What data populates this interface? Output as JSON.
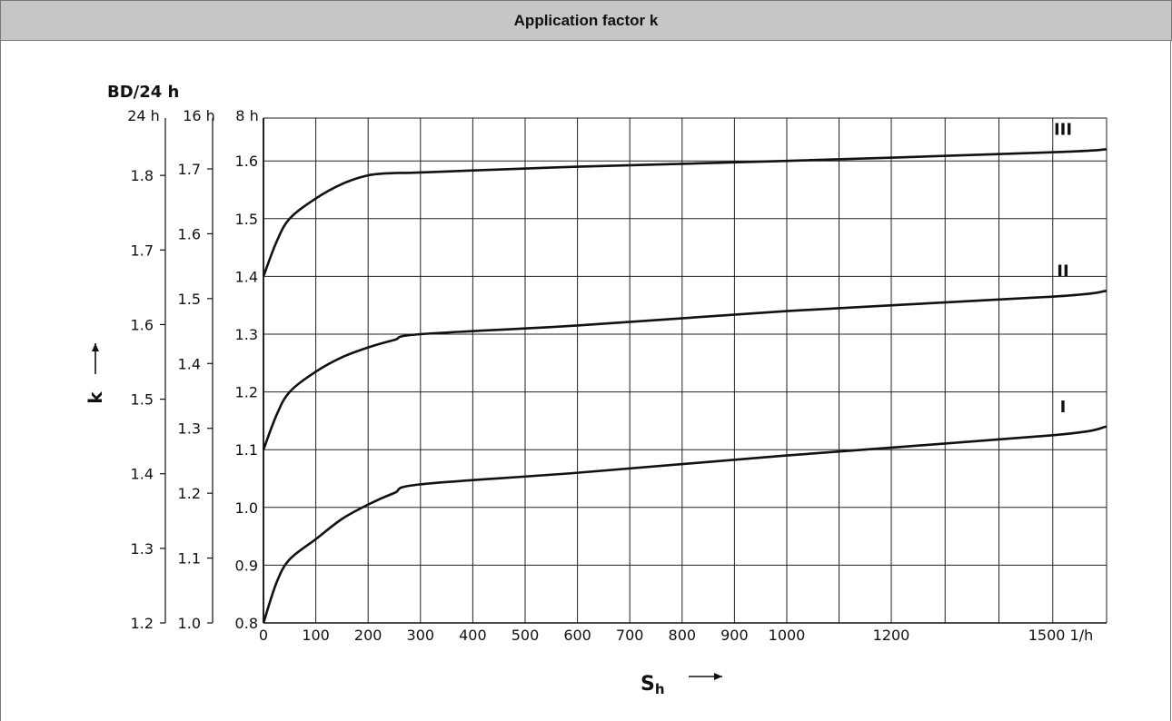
{
  "header": {
    "title": "Application factor k"
  },
  "chart_data": {
    "type": "line",
    "title": "BD/24 h",
    "xlabel": "Sh",
    "xlabel_main": "S",
    "xlabel_sub": "h",
    "ylabel": "k",
    "x_ticks": [
      {
        "value": 0,
        "label": "0"
      },
      {
        "value": 100,
        "label": "100"
      },
      {
        "value": 200,
        "label": "200"
      },
      {
        "value": 300,
        "label": "300"
      },
      {
        "value": 400,
        "label": "400"
      },
      {
        "value": 500,
        "label": "500"
      },
      {
        "value": 600,
        "label": "600"
      },
      {
        "value": 700,
        "label": "700"
      },
      {
        "value": 800,
        "label": "800"
      },
      {
        "value": 900,
        "label": "900"
      },
      {
        "value": 1000,
        "label": "1000"
      },
      {
        "value": 1200,
        "label": "1200"
      },
      {
        "value": 1500,
        "label": "1500 1/h"
      }
    ],
    "y_axes": [
      {
        "name": "8 h",
        "ylim": [
          0.8,
          1.65
        ],
        "ticks": [
          0.8,
          0.9,
          1.0,
          1.1,
          1.2,
          1.3,
          1.4,
          1.5,
          1.6
        ],
        "tick_labels": [
          "0.8",
          "0.9",
          "1.0",
          "1.1",
          "1.2",
          "1.3",
          "1.4",
          "1.5",
          "1.6"
        ]
      },
      {
        "name": "16 h",
        "ylim": [
          1.0,
          1.75
        ],
        "ticks": [
          1.0,
          1.1,
          1.2,
          1.3,
          1.4,
          1.5,
          1.6,
          1.7
        ],
        "tick_labels": [
          "1.0",
          "1.1",
          "1.2",
          "1.3",
          "1.4",
          "1.5",
          "1.6",
          "1.7"
        ]
      },
      {
        "name": "24 h",
        "ylim": [
          1.2,
          1.85
        ],
        "ticks": [
          1.2,
          1.3,
          1.4,
          1.5,
          1.6,
          1.7,
          1.8
        ],
        "tick_labels": [
          "1.2",
          "1.3",
          "1.4",
          "1.5",
          "1.6",
          "1.7",
          "1.8"
        ]
      }
    ],
    "grid": true,
    "series": [
      {
        "name": "III",
        "x": [
          0,
          25,
          50,
          100,
          150,
          200,
          250,
          300,
          600,
          1000,
          1500,
          1600
        ],
        "y": [
          1.4,
          1.46,
          1.5,
          1.535,
          1.56,
          1.575,
          1.579,
          1.58,
          1.59,
          1.6,
          1.615,
          1.62
        ]
      },
      {
        "name": "II",
        "x": [
          0,
          25,
          50,
          100,
          150,
          200,
          250,
          300,
          600,
          1000,
          1500,
          1600
        ],
        "y": [
          1.1,
          1.16,
          1.2,
          1.235,
          1.26,
          1.277,
          1.29,
          1.3,
          1.315,
          1.34,
          1.365,
          1.375
        ]
      },
      {
        "name": "I",
        "x": [
          0,
          25,
          50,
          100,
          150,
          200,
          250,
          300,
          600,
          1000,
          1500,
          1600
        ],
        "y": [
          0.8,
          0.87,
          0.91,
          0.945,
          0.98,
          1.005,
          1.025,
          1.04,
          1.06,
          1.09,
          1.125,
          1.14
        ]
      }
    ]
  }
}
